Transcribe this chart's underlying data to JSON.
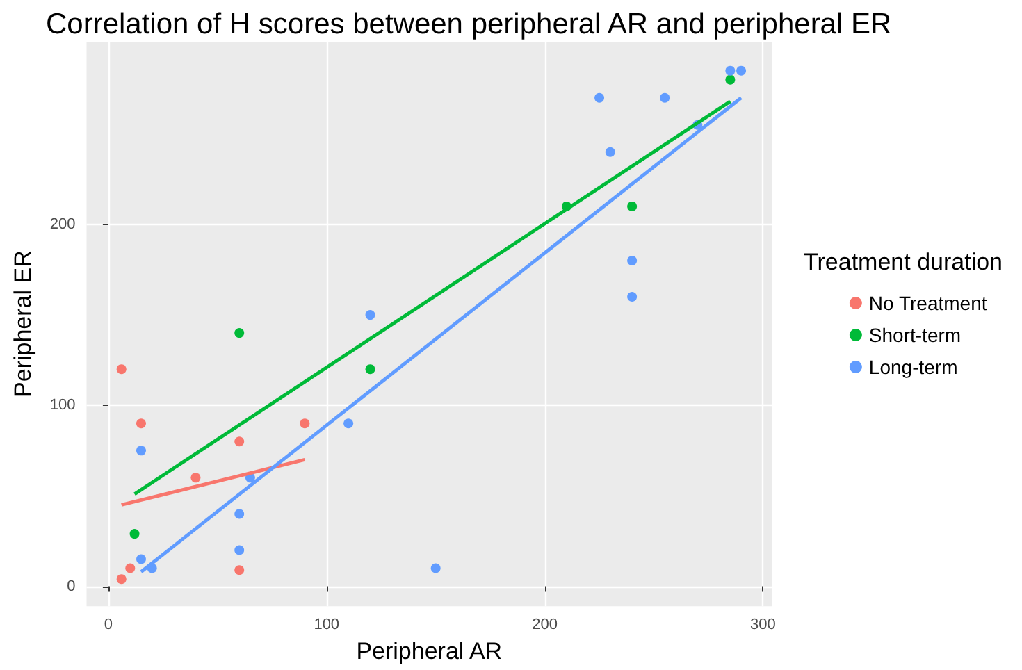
{
  "chart_data": {
    "type": "scatter",
    "title": "Correlation of H scores between peripheral AR and peripheral ER",
    "xlabel": "Peripheral AR",
    "ylabel": "Peripheral ER",
    "legend_title": "Treatment duration",
    "legend": "right",
    "grid": true,
    "marker": "circle",
    "xlim": [
      -10,
      304
    ],
    "ylim": [
      -11,
      301
    ],
    "xticks": [
      0,
      100,
      200,
      300
    ],
    "yticks": [
      0,
      100,
      200
    ],
    "series": [
      {
        "name": "No Treatment",
        "color": "#f8766d",
        "x": [
          6,
          6,
          10,
          15,
          40,
          60,
          60,
          90
        ],
        "values": [
          120,
          4,
          10,
          90,
          60,
          80,
          9,
          90
        ]
      },
      {
        "name": "Short-term",
        "color": "#00ba38",
        "x": [
          12,
          60,
          120,
          210,
          240,
          285
        ],
        "values": [
          29,
          140,
          120,
          210,
          210,
          280
        ]
      },
      {
        "name": "Long-term",
        "color": "#619cff",
        "x": [
          15,
          15,
          20,
          60,
          60,
          65,
          110,
          120,
          150,
          225,
          230,
          240,
          240,
          255,
          270,
          285,
          290
        ],
        "values": [
          75,
          15,
          10,
          40,
          20,
          60,
          90,
          150,
          10,
          270,
          240,
          180,
          160,
          270,
          255,
          285,
          285
        ]
      },
      {
        "type": "line",
        "marker": "none",
        "color": "#f8766d",
        "x": [
          6,
          90
        ],
        "values": [
          45,
          70
        ]
      },
      {
        "type": "line",
        "marker": "none",
        "color": "#00ba38",
        "x": [
          12,
          285
        ],
        "values": [
          51,
          268
        ]
      },
      {
        "type": "line",
        "marker": "none",
        "color": "#619cff",
        "x": [
          15,
          290
        ],
        "values": [
          8,
          270
        ]
      }
    ]
  }
}
